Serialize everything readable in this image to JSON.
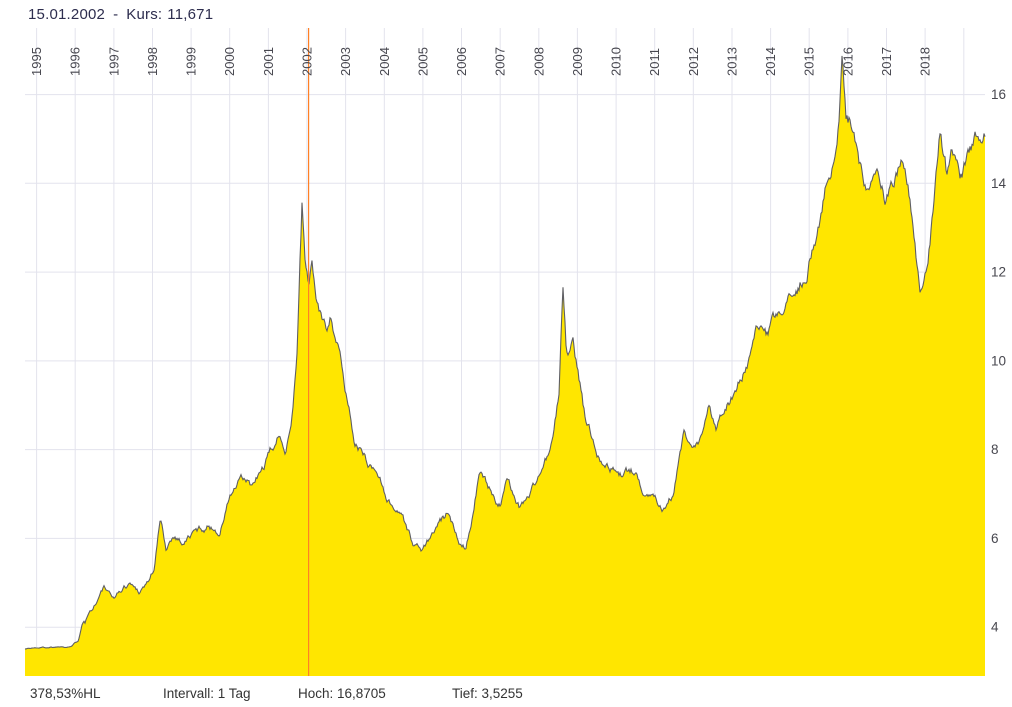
{
  "header": {
    "date": "15.01.2002",
    "separator": "-",
    "kurs_label": "Kurs:",
    "kurs_value": "11,671"
  },
  "footer": {
    "performance": "378,53%HL",
    "interval": "Intervall: 1 Tag",
    "high": "Hoch: 16,8705",
    "low": "Tief: 3,5255"
  },
  "chart_data": {
    "type": "area",
    "title": "",
    "xlabel": "",
    "ylabel": "",
    "x_tick_labels": [
      "1995",
      "1996",
      "1997",
      "1998",
      "1999",
      "2000",
      "2001",
      "2002",
      "2003",
      "2004",
      "2005",
      "2006",
      "2007",
      "2008",
      "2009",
      "2010",
      "2011",
      "2012",
      "2013",
      "2014",
      "2015",
      "2016",
      "2017",
      "2018"
    ],
    "x_gridline_years": [
      1995,
      1996,
      1997,
      1998,
      1999,
      2000,
      2001,
      2002,
      2003,
      2004,
      2005,
      2006,
      2007,
      2008,
      2009,
      2010,
      2011,
      2012,
      2013,
      2014,
      2015,
      2016,
      2017,
      2018,
      2019
    ],
    "y_ticks": [
      4,
      6,
      8,
      10,
      12,
      14,
      16
    ],
    "xlim": [
      1994.7,
      2019.55
    ],
    "ylim": [
      2.9,
      17.5
    ],
    "grid": true,
    "legend": "none",
    "interval": "1 Tag",
    "high": 16.8705,
    "low": 3.5255,
    "crosshair": {
      "year": 2002.04,
      "date": "15.01.2002",
      "value": 11.671
    },
    "series": [
      {
        "name": "Kurs",
        "keypoints": [
          [
            1994.7,
            3.52
          ],
          [
            1995.3,
            3.55
          ],
          [
            1995.9,
            3.58
          ],
          [
            1996.08,
            3.7
          ],
          [
            1996.18,
            4.1
          ],
          [
            1996.35,
            4.35
          ],
          [
            1996.55,
            4.6
          ],
          [
            1996.75,
            4.9
          ],
          [
            1996.95,
            4.62
          ],
          [
            1997.15,
            4.8
          ],
          [
            1997.4,
            5.0
          ],
          [
            1997.65,
            4.82
          ],
          [
            1997.9,
            5.05
          ],
          [
            1998.05,
            5.35
          ],
          [
            1998.2,
            6.42
          ],
          [
            1998.35,
            5.78
          ],
          [
            1998.55,
            6.1
          ],
          [
            1998.8,
            5.92
          ],
          [
            1999.1,
            6.15
          ],
          [
            1999.45,
            6.28
          ],
          [
            1999.75,
            6.15
          ],
          [
            2000.0,
            6.95
          ],
          [
            2000.3,
            7.3
          ],
          [
            2000.6,
            7.15
          ],
          [
            2000.85,
            7.55
          ],
          [
            2001.05,
            7.9
          ],
          [
            2001.25,
            8.25
          ],
          [
            2001.45,
            8.05
          ],
          [
            2001.6,
            8.75
          ],
          [
            2001.73,
            10.0
          ],
          [
            2001.82,
            12.3
          ],
          [
            2001.87,
            13.45
          ],
          [
            2001.95,
            12.3
          ],
          [
            2002.04,
            11.671
          ],
          [
            2002.12,
            12.25
          ],
          [
            2002.22,
            11.55
          ],
          [
            2002.35,
            11.0
          ],
          [
            2002.5,
            10.75
          ],
          [
            2002.62,
            11.1
          ],
          [
            2002.78,
            10.45
          ],
          [
            2003.0,
            9.3
          ],
          [
            2003.25,
            8.2
          ],
          [
            2003.55,
            7.75
          ],
          [
            2003.85,
            7.45
          ],
          [
            2004.15,
            6.8
          ],
          [
            2004.45,
            6.6
          ],
          [
            2004.75,
            5.85
          ],
          [
            2005.0,
            5.75
          ],
          [
            2005.3,
            6.15
          ],
          [
            2005.6,
            6.5
          ],
          [
            2005.95,
            5.95
          ],
          [
            2006.1,
            5.85
          ],
          [
            2006.3,
            6.6
          ],
          [
            2006.45,
            7.5
          ],
          [
            2006.7,
            7.1
          ],
          [
            2007.0,
            6.78
          ],
          [
            2007.2,
            7.3
          ],
          [
            2007.5,
            6.72
          ],
          [
            2007.8,
            7.05
          ],
          [
            2008.1,
            7.6
          ],
          [
            2008.35,
            8.1
          ],
          [
            2008.52,
            9.2
          ],
          [
            2008.62,
            11.72
          ],
          [
            2008.72,
            10.1
          ],
          [
            2008.88,
            10.35
          ],
          [
            2009.02,
            9.7
          ],
          [
            2009.2,
            8.7
          ],
          [
            2009.5,
            8.0
          ],
          [
            2009.8,
            7.65
          ],
          [
            2010.1,
            7.45
          ],
          [
            2010.4,
            7.5
          ],
          [
            2010.7,
            7.1
          ],
          [
            2011.0,
            6.98
          ],
          [
            2011.25,
            6.72
          ],
          [
            2011.5,
            7.05
          ],
          [
            2011.75,
            8.3
          ],
          [
            2011.95,
            7.85
          ],
          [
            2012.2,
            8.15
          ],
          [
            2012.4,
            8.9
          ],
          [
            2012.6,
            8.55
          ],
          [
            2012.85,
            9.05
          ],
          [
            2013.1,
            9.4
          ],
          [
            2013.4,
            9.9
          ],
          [
            2013.67,
            10.7
          ],
          [
            2013.9,
            10.5
          ],
          [
            2014.15,
            10.9
          ],
          [
            2014.45,
            11.25
          ],
          [
            2014.7,
            11.6
          ],
          [
            2014.95,
            12.1
          ],
          [
            2015.2,
            12.95
          ],
          [
            2015.45,
            14.0
          ],
          [
            2015.62,
            14.3
          ],
          [
            2015.78,
            15.4
          ],
          [
            2015.85,
            16.87
          ],
          [
            2015.95,
            15.3
          ],
          [
            2016.1,
            15.25
          ],
          [
            2016.3,
            14.3
          ],
          [
            2016.55,
            13.95
          ],
          [
            2016.75,
            14.3
          ],
          [
            2016.95,
            13.65
          ],
          [
            2017.15,
            13.9
          ],
          [
            2017.4,
            14.35
          ],
          [
            2017.58,
            13.75
          ],
          [
            2017.75,
            12.4
          ],
          [
            2017.88,
            11.6
          ],
          [
            2018.05,
            12.3
          ],
          [
            2018.2,
            13.3
          ],
          [
            2018.4,
            15.25
          ],
          [
            2018.55,
            14.35
          ],
          [
            2018.7,
            14.95
          ],
          [
            2018.9,
            14.05
          ],
          [
            2019.1,
            14.5
          ],
          [
            2019.3,
            14.9
          ],
          [
            2019.55,
            15.35
          ]
        ]
      }
    ],
    "colors": {
      "area_fill": "#ffe600",
      "line": "#5f5f63",
      "crosshair": "#ff8026",
      "grid": "#e3e3ed",
      "axis_text": "#47474f",
      "header_text": "#2d2d4e",
      "footer_text": "#333333"
    }
  }
}
